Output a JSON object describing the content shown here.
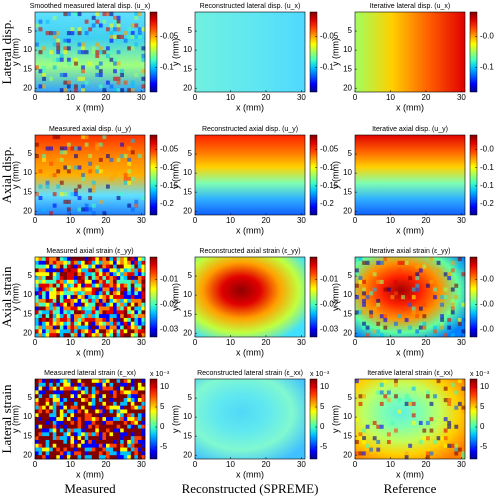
{
  "chart_data": [
    {
      "type": "heatmap",
      "title": "Smoothed measured lateral disp. (u_x)",
      "xlabel": "x (mm)",
      "ylabel": "y (mm)",
      "xlim": [
        0,
        31
      ],
      "xticks": [
        0,
        10,
        20,
        30
      ],
      "ylim": [
        0,
        21
      ],
      "yticks": [
        5,
        10,
        15,
        20
      ],
      "y_reversed": true,
      "colormap": "jet",
      "clim": [
        -0.14,
        -0.01
      ],
      "cticks": [
        -0.1,
        -0.05
      ]
    },
    {
      "type": "heatmap",
      "title": "Reconstructed lateral disp. (u_x)",
      "xlabel": "x (mm)",
      "ylabel": "y (mm)",
      "xlim": [
        0,
        31
      ],
      "xticks": [
        0,
        10,
        20,
        30
      ],
      "ylim": [
        0,
        21
      ],
      "yticks": [
        5,
        10,
        15,
        20
      ],
      "y_reversed": true,
      "colormap": "jet",
      "clim": [
        -0.14,
        -0.01
      ],
      "cticks": [
        -0.1,
        -0.05
      ]
    },
    {
      "type": "heatmap",
      "title": "Iterative lateral disp. (u_x)",
      "xlabel": "x (mm)",
      "ylabel": "y (mm)",
      "xlim": [
        0,
        31
      ],
      "xticks": [
        0,
        10,
        20,
        30
      ],
      "ylim": [
        0,
        21
      ],
      "yticks": [
        5,
        10,
        15,
        20
      ],
      "y_reversed": true,
      "colormap": "jet",
      "clim": [
        -0.14,
        -0.01
      ],
      "cticks": [
        -0.1,
        -0.05
      ]
    },
    {
      "type": "heatmap",
      "title": "Measured axial disp. (u_y)",
      "xlabel": "x (mm)",
      "ylabel": "y (mm)",
      "xlim": [
        0,
        31
      ],
      "xticks": [
        0,
        10,
        20,
        30
      ],
      "ylim": [
        0,
        21
      ],
      "yticks": [
        5,
        10,
        15,
        20
      ],
      "y_reversed": true,
      "colormap": "jet",
      "clim": [
        -0.23,
        -0.01
      ],
      "cticks": [
        -0.2,
        -0.15,
        -0.1,
        -0.05
      ]
    },
    {
      "type": "heatmap",
      "title": "Reconstructed axial disp. (u_y)",
      "xlabel": "x (mm)",
      "ylabel": "y (mm)",
      "xlim": [
        0,
        31
      ],
      "xticks": [
        0,
        10,
        20,
        30
      ],
      "ylim": [
        0,
        21
      ],
      "yticks": [
        5,
        10,
        15,
        20
      ],
      "y_reversed": true,
      "colormap": "jet",
      "clim": [
        -0.23,
        -0.01
      ],
      "cticks": [
        -0.2,
        -0.15,
        -0.1,
        -0.05
      ]
    },
    {
      "type": "heatmap",
      "title": "Iterative axial disp. (u_y)",
      "xlabel": "x (mm)",
      "ylabel": "y (mm)",
      "xlim": [
        0,
        31
      ],
      "xticks": [
        0,
        10,
        20,
        30
      ],
      "ylim": [
        0,
        21
      ],
      "yticks": [
        5,
        10,
        15,
        20
      ],
      "y_reversed": true,
      "colormap": "jet",
      "clim": [
        -0.23,
        -0.01
      ],
      "cticks": [
        -0.2,
        -0.15,
        -0.1,
        -0.05
      ]
    },
    {
      "type": "heatmap",
      "title": "Measured axial strain (ε_yy)",
      "xlabel": "x (mm)",
      "ylabel": "y (mm)",
      "xlim": [
        0,
        31
      ],
      "xticks": [
        0,
        10,
        20,
        30
      ],
      "ylim": [
        0,
        21
      ],
      "yticks": [
        5,
        10,
        15,
        20
      ],
      "y_reversed": true,
      "colormap": "jet",
      "clim": [
        -0.033,
        -0.001
      ],
      "cticks": [
        -0.03,
        -0.02,
        -0.01
      ]
    },
    {
      "type": "heatmap",
      "title": "Reconstructed axial strain (ε_yy)",
      "xlabel": "x (mm)",
      "ylabel": "y (mm)",
      "xlim": [
        0,
        31
      ],
      "xticks": [
        0,
        10,
        20,
        30
      ],
      "ylim": [
        0,
        21
      ],
      "yticks": [
        5,
        10,
        15,
        20
      ],
      "y_reversed": true,
      "colormap": "jet",
      "clim": [
        -0.033,
        -0.001
      ],
      "cticks": [
        -0.03,
        -0.02,
        -0.01
      ]
    },
    {
      "type": "heatmap",
      "title": "Iterative axial strain (ε_yy)",
      "xlabel": "x (mm)",
      "ylabel": "y (mm)",
      "xlim": [
        0,
        31
      ],
      "xticks": [
        0,
        10,
        20,
        30
      ],
      "ylim": [
        0,
        21
      ],
      "yticks": [
        5,
        10,
        15,
        20
      ],
      "y_reversed": true,
      "colormap": "jet",
      "clim": [
        -0.033,
        -0.001
      ],
      "cticks": [
        -0.03,
        -0.02,
        -0.01
      ]
    },
    {
      "type": "heatmap",
      "title": "Measured lateral strain (ε_xx)",
      "xlabel": "x (mm)",
      "ylabel": "y (mm)",
      "xlim": [
        0,
        31
      ],
      "xticks": [
        0,
        10,
        20,
        30
      ],
      "ylim": [
        0,
        21
      ],
      "yticks": [
        5,
        10,
        15,
        20
      ],
      "y_reversed": true,
      "colormap": "jet",
      "clim": [
        -8,
        12
      ],
      "cticks": [
        -5,
        0,
        5,
        10
      ],
      "colorbar_label": "x 10⁻³"
    },
    {
      "type": "heatmap",
      "title": "Reconstructed lateral strain (ε_xx)",
      "xlabel": "x (mm)",
      "ylabel": "y (mm)",
      "xlim": [
        0,
        31
      ],
      "xticks": [
        0,
        10,
        20,
        30
      ],
      "ylim": [
        0,
        21
      ],
      "yticks": [
        5,
        10,
        15,
        20
      ],
      "y_reversed": true,
      "colormap": "jet",
      "clim": [
        -8,
        12
      ],
      "cticks": [
        -5,
        0,
        5,
        10
      ],
      "colorbar_label": "x 10⁻³"
    },
    {
      "type": "heatmap",
      "title": "Iterative lateral strain (ε_xx)",
      "xlabel": "x (mm)",
      "ylabel": "y (mm)",
      "xlim": [
        0,
        31
      ],
      "xticks": [
        0,
        10,
        20,
        30
      ],
      "ylim": [
        0,
        21
      ],
      "yticks": [
        5,
        10,
        15,
        20
      ],
      "y_reversed": true,
      "colormap": "jet",
      "clim": [
        -8,
        12
      ],
      "cticks": [
        -5,
        0,
        5,
        10
      ],
      "colorbar_label": "x 10⁻³"
    }
  ],
  "row_labels": [
    "Lateral disp.",
    "Axial disp.",
    "Axial strain",
    "Lateral strain"
  ],
  "column_labels": [
    "Measured",
    "Reconstructed (SPREME)",
    "Reference"
  ]
}
